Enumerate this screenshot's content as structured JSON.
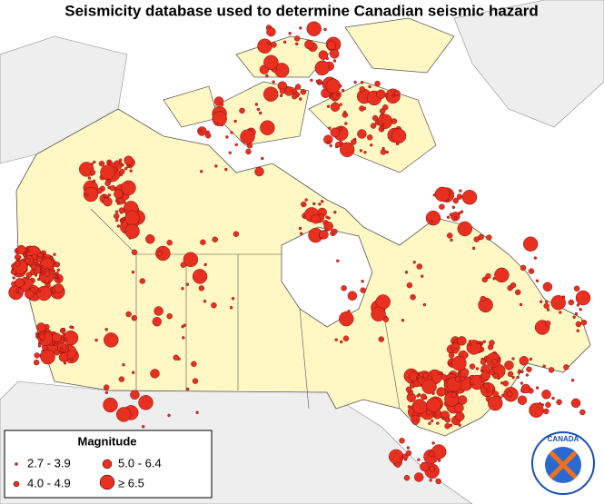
{
  "title": "Seismicity database used to determine Canadian seismic hazard",
  "legend": {
    "title": "Magnitude",
    "items": [
      "2.7 - 3.9",
      "5.0 - 6.4",
      "4.0 - 4.9",
      "≥ 6.5"
    ]
  },
  "logo": "CANADA"
}
